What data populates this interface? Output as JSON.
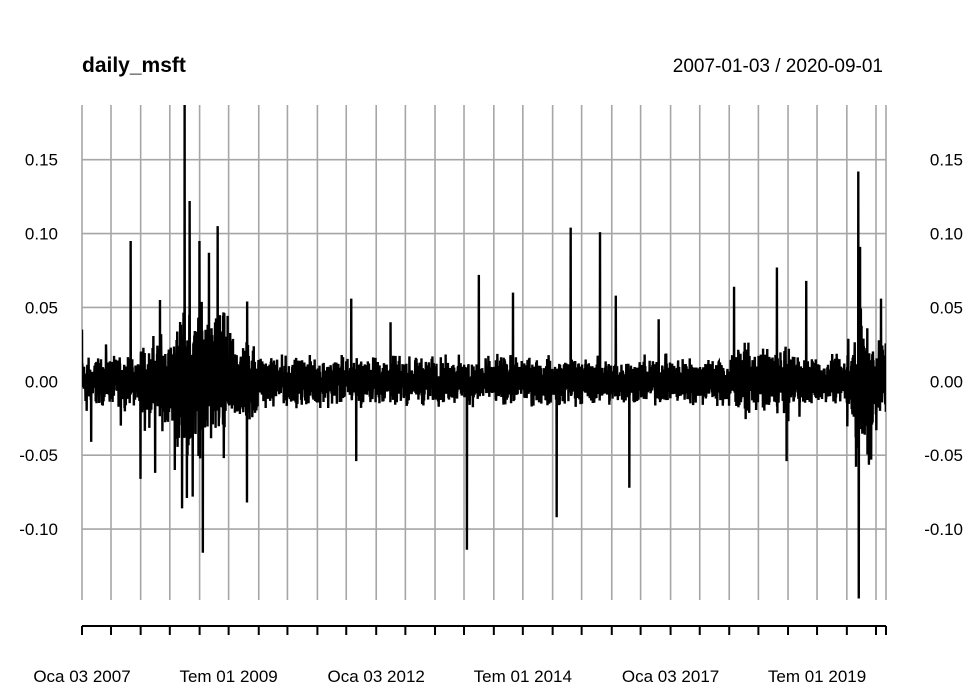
{
  "chart_data": {
    "type": "line",
    "title": "daily_msft",
    "subtitle": "2007-01-03 / 2020-09-01",
    "xlabel": "",
    "ylabel": "",
    "x_start": "2007-01-03",
    "x_end": "2020-09-01",
    "ylim": [
      -0.148,
      0.187
    ],
    "grid": true,
    "line_color": "#000000",
    "grid_color": "#a6a6a6",
    "y_ticks": [
      0.15,
      0.1,
      0.05,
      0.0,
      -0.05,
      -0.1
    ],
    "y_tick_labels": [
      "0.15",
      "0.10",
      "0.05",
      "0.00",
      "-0.05",
      "-0.10"
    ],
    "x_tick_labels": [
      {
        "date": "2007-01-03",
        "label": "Oca 03 2007"
      },
      {
        "date": "2009-07-01",
        "label": "Tem 01 2009"
      },
      {
        "date": "2012-01-03",
        "label": "Oca 03 2012"
      },
      {
        "date": "2014-07-01",
        "label": "Tem 01 2014"
      },
      {
        "date": "2017-01-03",
        "label": "Oca 03 2017"
      },
      {
        "date": "2019-07-01",
        "label": "Tem 01 2019"
      }
    ],
    "x_grid_dates": [
      "2007-01-03",
      "2007-07-02",
      "2008-01-02",
      "2008-07-01",
      "2009-01-02",
      "2009-07-01",
      "2010-01-04",
      "2010-07-01",
      "2011-01-03",
      "2011-07-01",
      "2012-01-03",
      "2012-07-02",
      "2013-01-02",
      "2013-07-01",
      "2014-01-02",
      "2014-07-01",
      "2015-01-02",
      "2015-07-01",
      "2016-01-04",
      "2016-07-01",
      "2017-01-03",
      "2017-07-03",
      "2018-01-02",
      "2018-07-02",
      "2019-01-02",
      "2019-07-01",
      "2020-01-02",
      "2020-07-01"
    ],
    "series": [
      {
        "values_note": "",
        "points": [
          {
            "x": "2007-01-03",
            "y": 0.035
          },
          {
            "x": "2007-02-01",
            "y": -0.02
          },
          {
            "x": "2007-03-01",
            "y": -0.041
          },
          {
            "x": "2007-06-01",
            "y": 0.025
          },
          {
            "x": "2007-09-01",
            "y": -0.03
          },
          {
            "x": "2007-11-01",
            "y": 0.095
          },
          {
            "x": "2008-01-01",
            "y": -0.066
          },
          {
            "x": "2008-04-01",
            "y": -0.062
          },
          {
            "x": "2008-05-01",
            "y": 0.055
          },
          {
            "x": "2008-08-01",
            "y": -0.06
          },
          {
            "x": "2008-09-15",
            "y": -0.086
          },
          {
            "x": "2008-10-01",
            "y": 0.187
          },
          {
            "x": "2008-10-15",
            "y": -0.079
          },
          {
            "x": "2008-11-01",
            "y": 0.122
          },
          {
            "x": "2008-11-20",
            "y": -0.078
          },
          {
            "x": "2009-01-01",
            "y": 0.095
          },
          {
            "x": "2009-01-22",
            "y": -0.116
          },
          {
            "x": "2009-03-01",
            "y": 0.087
          },
          {
            "x": "2009-04-24",
            "y": 0.105
          },
          {
            "x": "2009-06-01",
            "y": -0.052
          },
          {
            "x": "2009-10-23",
            "y": -0.082
          },
          {
            "x": "2009-10-24",
            "y": 0.054
          },
          {
            "x": "2011-08-01",
            "y": 0.056
          },
          {
            "x": "2011-09-01",
            "y": -0.054
          },
          {
            "x": "2012-04-01",
            "y": 0.04
          },
          {
            "x": "2013-07-19",
            "y": -0.114
          },
          {
            "x": "2013-10-01",
            "y": 0.072
          },
          {
            "x": "2014-05-01",
            "y": 0.06
          },
          {
            "x": "2015-01-27",
            "y": -0.092
          },
          {
            "x": "2015-04-24",
            "y": 0.104
          },
          {
            "x": "2015-10-23",
            "y": 0.101
          },
          {
            "x": "2016-01-29",
            "y": 0.058
          },
          {
            "x": "2016-04-22",
            "y": -0.072
          },
          {
            "x": "2016-10-21",
            "y": 0.042
          },
          {
            "x": "2018-02-01",
            "y": 0.064
          },
          {
            "x": "2018-10-25",
            "y": 0.077
          },
          {
            "x": "2018-12-24",
            "y": -0.054
          },
          {
            "x": "2019-04-25",
            "y": 0.068
          },
          {
            "x": "2020-03-13",
            "y": 0.142
          },
          {
            "x": "2020-03-16",
            "y": -0.147
          },
          {
            "x": "2020-03-24",
            "y": 0.091
          },
          {
            "x": "2020-06-01",
            "y": -0.053
          },
          {
            "x": "2020-08-01",
            "y": 0.056
          },
          {
            "x": "2020-09-01",
            "y": 0.024
          }
        ]
      }
    ]
  }
}
